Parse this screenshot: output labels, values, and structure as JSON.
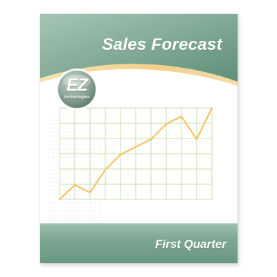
{
  "cover": {
    "title": "Sales Forecast",
    "subtitle": "First Quarter",
    "logo": {
      "mark": "EZ",
      "tagline": "technologies"
    }
  },
  "colors": {
    "header_green": "#7ea894",
    "header_green_dark": "#5f8e78",
    "accent_gold": "#f2d79a",
    "grid_green": "#c7dca4",
    "line_orange": "#f5c261"
  },
  "chart_data": {
    "type": "line",
    "title": "",
    "xlabel": "",
    "ylabel": "",
    "grid": true,
    "x": [
      0,
      1,
      2,
      3,
      4,
      5,
      6,
      7,
      8,
      9,
      10
    ],
    "xlim": [
      0,
      10
    ],
    "ylim": [
      0,
      6
    ],
    "series": [
      {
        "values": [
          0.0,
          0.95,
          0.45,
          1.95,
          2.95,
          3.45,
          3.95,
          4.95,
          5.45,
          3.95,
          6.0
        ]
      }
    ]
  }
}
